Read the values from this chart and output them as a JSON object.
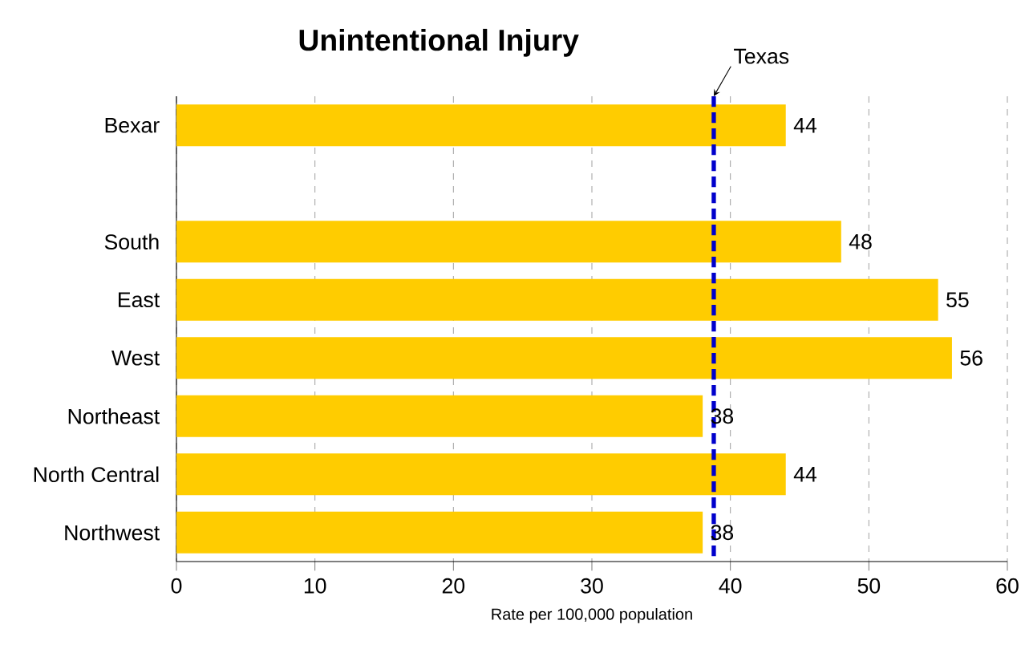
{
  "chart_data": {
    "type": "bar",
    "orientation": "horizontal",
    "title": "Unintentional Injury",
    "xlabel": "Rate per 100,000 population",
    "categories": [
      "Bexar",
      null,
      "South",
      "East",
      "West",
      "Northeast",
      "North Central",
      "Northwest"
    ],
    "values": [
      44,
      null,
      48,
      55,
      56,
      38,
      44,
      38
    ],
    "color": "#ffcc00",
    "xlim": [
      0,
      60
    ],
    "xticks": [
      0,
      10,
      20,
      30,
      40,
      50,
      60
    ],
    "grid": "x",
    "data_labels": true,
    "ref_lines": [
      {
        "axis": "x",
        "value": 38.8,
        "label": "Texas",
        "color": "#0000cc",
        "line_style": "dashed"
      }
    ]
  }
}
